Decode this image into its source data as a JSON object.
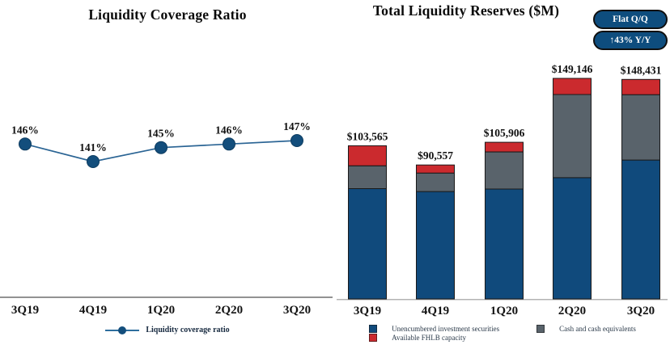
{
  "slide": {
    "background": "#ffffff"
  },
  "badges": {
    "fill": "#0e4d7e",
    "text_color": "#ffffff",
    "items": [
      {
        "label": "Flat Q/Q"
      },
      {
        "label": "↑43% Y/Y"
      }
    ]
  },
  "chart_data": [
    {
      "type": "line",
      "title": "Liquidity Coverage Ratio",
      "categories": [
        "3Q19",
        "4Q19",
        "1Q20",
        "2Q20",
        "3Q20"
      ],
      "series": [
        {
          "name": "Liquidity coverage ratio",
          "color": "#134e7c",
          "values": [
            146,
            141,
            145,
            146,
            147
          ]
        }
      ],
      "point_labels": [
        "146%",
        "141%",
        "145%",
        "146%",
        "147%"
      ],
      "unit": "%",
      "grid": false,
      "y_axis_visible": false,
      "legend_position": "bottom"
    },
    {
      "type": "bar",
      "stacked": true,
      "title": "Total Liquidity Reserves ($M)",
      "categories": [
        "3Q19",
        "4Q19",
        "1Q20",
        "2Q20",
        "3Q20"
      ],
      "series": [
        {
          "name": "Unencumbered investment securities",
          "color": "#104a7c",
          "values": [
            74600,
            72600,
            74300,
            82000,
            93900
          ]
        },
        {
          "name": "Cash and cash equivalents",
          "color": "#59636b",
          "values": [
            15400,
            12500,
            25100,
            56200,
            44200
          ]
        },
        {
          "name": "Available FHLB capacity",
          "color": "#cb2a2e",
          "values": [
            13565,
            5457,
            6506,
            10946,
            10331
          ]
        }
      ],
      "segments_estimated": true,
      "totals": [
        103565,
        90557,
        105906,
        149146,
        148431
      ],
      "total_labels": [
        "$103,565",
        "$90,557",
        "$105,906",
        "$149,146",
        "$148,431"
      ],
      "grid": false,
      "y_axis_visible": false,
      "legend_position": "bottom",
      "annotations": [
        "Flat Q/Q",
        "↑43% Y/Y"
      ]
    }
  ]
}
